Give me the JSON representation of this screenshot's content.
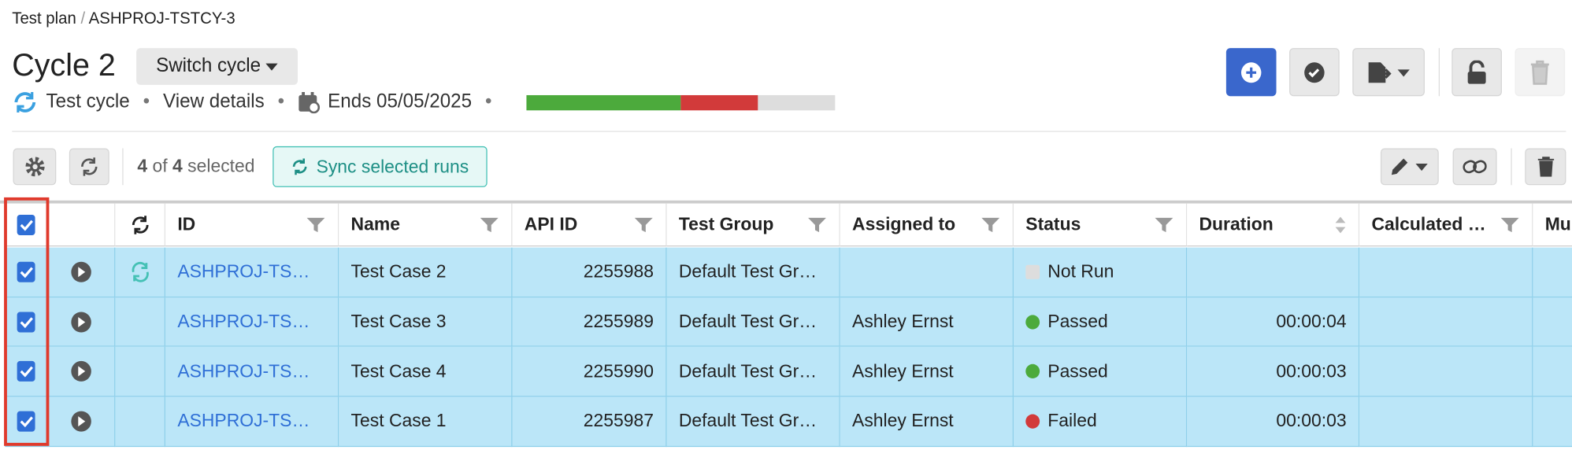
{
  "breadcrumb": [
    "Test plan",
    "ASHPROJ-TSTCY-3"
  ],
  "title": "Cycle 2",
  "switch_button": "Switch cycle",
  "meta": {
    "type": "Test cycle",
    "details": "View details",
    "ends": "Ends 05/05/2025"
  },
  "progress": [
    {
      "value": 2,
      "color": "#4caa3c"
    },
    {
      "value": 1,
      "color": "#d23a3a"
    },
    {
      "value": 1,
      "color": "#dddddd"
    }
  ],
  "toolbar": {
    "count": "4",
    "of": "of",
    "total": "4",
    "selected": "selected",
    "sync_button": "Sync selected runs"
  },
  "table": {
    "columns": [
      "ID",
      "Name",
      "API ID",
      "Test Group",
      "Assigned to",
      "Status",
      "Duration",
      "Calculated …",
      "Mu"
    ],
    "rows": [
      {
        "synced": true,
        "id": "ASHPROJ-TS…",
        "name": "Test Case 2",
        "api_id": 2255988,
        "group": "Default Test Gr…",
        "status": "Not Run",
        "status_color": "#dddddd"
      },
      {
        "synced": false,
        "id": "ASHPROJ-TS…",
        "name": "Test Case 3",
        "api_id": 2255989,
        "group": "Default Test Gr…",
        "assigned": "Ashley Ernst",
        "status": "Passed",
        "status_color": "#4caa3c",
        "duration": "00:00:04"
      },
      {
        "synced": false,
        "id": "ASHPROJ-TS…",
        "name": "Test Case 4",
        "api_id": 2255990,
        "group": "Default Test Gr…",
        "assigned": "Ashley Ernst",
        "status": "Passed",
        "status_color": "#4caa3c",
        "duration": "00:00:03"
      },
      {
        "synced": false,
        "id": "ASHPROJ-TS…",
        "name": "Test Case 1",
        "api_id": 2255987,
        "group": "Default Test Gr…",
        "assigned": "Ashley Ernst",
        "status": "Failed",
        "status_color": "#d23a3a",
        "duration": "00:00:03"
      }
    ]
  }
}
